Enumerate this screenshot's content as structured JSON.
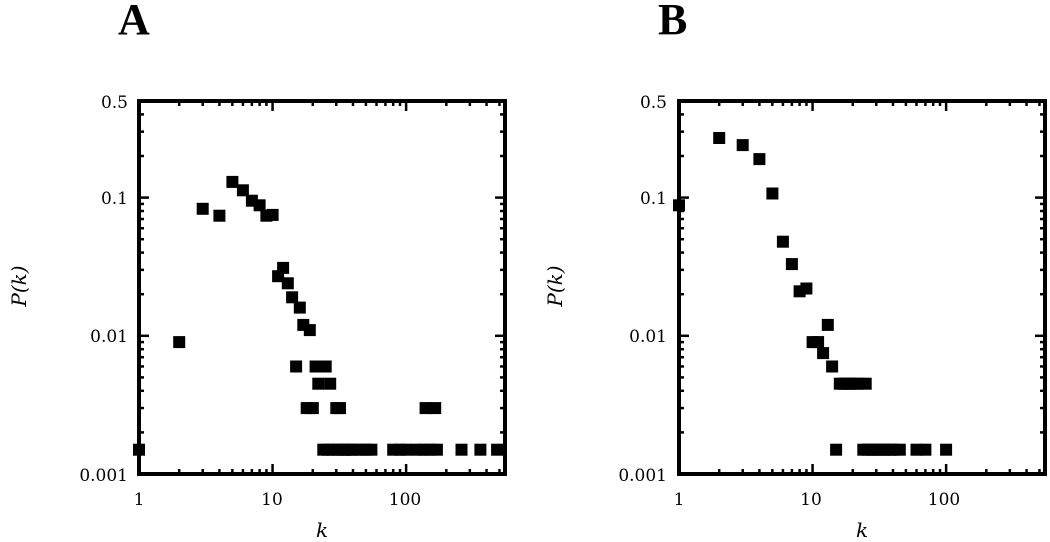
{
  "chart_data": [
    {
      "type": "scatter",
      "panel_label": "A",
      "xlabel": "k",
      "ylabel": "P(k)",
      "x_scale": "log",
      "y_scale": "log",
      "xlim": [
        1,
        550
      ],
      "ylim": [
        0.001,
        0.5
      ],
      "x_ticks": [
        1,
        10,
        100
      ],
      "x_tick_labels": [
        "1",
        "10",
        "100"
      ],
      "y_ticks": [
        0.001,
        0.01,
        0.1,
        0.5
      ],
      "y_tick_labels": [
        "0.001",
        "0.01",
        "0.1",
        "0.5"
      ],
      "grid": false,
      "series": [
        {
          "x": [
            1,
            2,
            3,
            4,
            5,
            6,
            7,
            8,
            9,
            10,
            11,
            12,
            13,
            14,
            15,
            16,
            17,
            18,
            19,
            20,
            21,
            22,
            23,
            24,
            25,
            26,
            27,
            28,
            30,
            31,
            32,
            34,
            35,
            37,
            40,
            45,
            50,
            55,
            80,
            90,
            100,
            120,
            135,
            140,
            150,
            165,
            170,
            260,
            360,
            480
          ],
          "y": [
            0.0015,
            0.009,
            0.083,
            0.074,
            0.13,
            0.113,
            0.095,
            0.088,
            0.074,
            0.075,
            0.027,
            0.031,
            0.024,
            0.019,
            0.006,
            0.016,
            0.012,
            0.003,
            0.011,
            0.003,
            0.006,
            0.0045,
            0.006,
            0.0015,
            0.006,
            0.0015,
            0.0045,
            0.0015,
            0.003,
            0.0015,
            0.003,
            0.0015,
            0.0015,
            0.0015,
            0.0015,
            0.0015,
            0.0015,
            0.0015,
            0.0015,
            0.0015,
            0.0015,
            0.0015,
            0.0015,
            0.003,
            0.0015,
            0.003,
            0.0015,
            0.0015,
            0.0015,
            0.0015
          ]
        }
      ]
    },
    {
      "type": "scatter",
      "panel_label": "B",
      "xlabel": "k",
      "ylabel": "P(k)",
      "x_scale": "log",
      "y_scale": "log",
      "xlim": [
        1,
        550
      ],
      "ylim": [
        0.001,
        0.5
      ],
      "x_ticks": [
        1,
        10,
        100
      ],
      "x_tick_labels": [
        "1",
        "10",
        "100"
      ],
      "y_ticks": [
        0.001,
        0.01,
        0.1,
        0.5
      ],
      "y_tick_labels": [
        "0.001",
        "0.01",
        "0.1",
        "0.5"
      ],
      "grid": false,
      "series": [
        {
          "x": [
            1,
            2,
            3,
            4,
            5,
            6,
            7,
            8,
            9,
            10,
            11,
            12,
            13,
            14,
            15,
            16,
            17,
            18,
            19,
            20,
            22,
            24,
            25,
            26,
            28,
            30,
            32,
            35,
            38,
            40,
            45,
            60,
            70,
            100
          ],
          "y": [
            0.088,
            0.27,
            0.24,
            0.19,
            0.107,
            0.048,
            0.033,
            0.021,
            0.022,
            0.009,
            0.009,
            0.0075,
            0.012,
            0.006,
            0.0015,
            0.0045,
            0.0045,
            0.0045,
            0.0045,
            0.0045,
            0.0045,
            0.0015,
            0.0045,
            0.0015,
            0.0015,
            0.0015,
            0.0015,
            0.0015,
            0.0015,
            0.0015,
            0.0015,
            0.0015,
            0.0015,
            0.0015
          ]
        }
      ]
    }
  ]
}
